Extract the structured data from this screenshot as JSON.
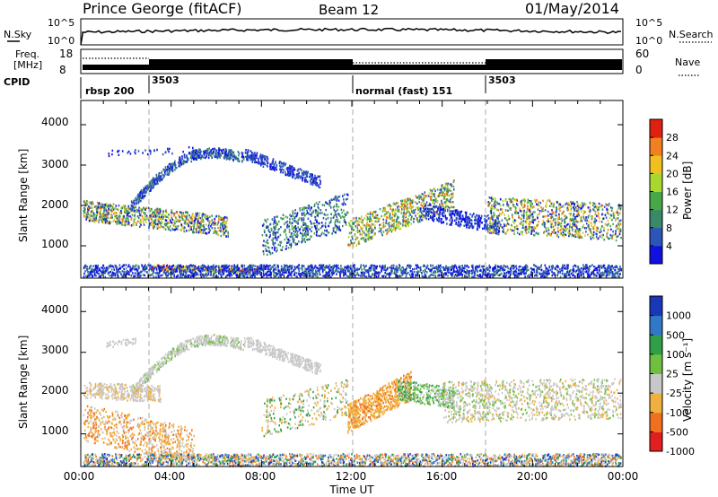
{
  "header": {
    "station": "Prince George (fitACF)",
    "beam": "Beam 12",
    "date": "01/May/2014"
  },
  "panels": {
    "nsky": {
      "label": "N.Sky",
      "right_label": "N.Search",
      "ticks_left": [
        "10^5",
        "10^0"
      ],
      "ticks_right": [
        "10^5",
        "10^0"
      ]
    },
    "freq": {
      "label_line1": "Freq.",
      "label_line2": "[MHz]",
      "ticks_left": [
        "18",
        "8"
      ],
      "ticks_right": [
        "60",
        "0"
      ],
      "right_label": "Nave"
    },
    "cpid": {
      "label": "CPID",
      "segments": [
        "rbsp 200",
        "3503",
        "normal (fast) 151",
        "3503"
      ]
    }
  },
  "chart_data": [
    {
      "type": "heatmap",
      "name": "power",
      "ylabel": "Slant Range [km]",
      "yticks": [
        "4000",
        "3000",
        "2000",
        "1000"
      ],
      "ylim": [
        200,
        4600
      ],
      "colorbar": {
        "title": "Power [dB]",
        "ticks": [
          "28",
          "24",
          "20",
          "16",
          "12",
          "8",
          "4"
        ]
      }
    },
    {
      "type": "heatmap",
      "name": "velocity",
      "ylabel": "Slant Range [km]",
      "yticks": [
        "4000",
        "3000",
        "2000",
        "1000"
      ],
      "ylim": [
        200,
        4600
      ],
      "xlabel": "Time UT",
      "xticks": [
        "00:00",
        "04:00",
        "08:00",
        "12:00",
        "16:00",
        "20:00",
        "00:00"
      ],
      "colorbar": {
        "title": "Velocity [m s⁻¹]",
        "ticks": [
          "1000",
          "500",
          "100",
          "25",
          "-25",
          "-100",
          "-500",
          "-1000"
        ]
      }
    }
  ],
  "colors": {
    "power_scale": [
      "#1010e0",
      "#2c55b8",
      "#3a8a6a",
      "#48a848",
      "#a8d830",
      "#f0c020",
      "#f08020",
      "#e02010"
    ],
    "velocity_scale": [
      "#1838b8",
      "#3078c8",
      "#30a048",
      "#70c040",
      "#c8c8c8",
      "#f0b040",
      "#f07020",
      "#e02020"
    ]
  }
}
